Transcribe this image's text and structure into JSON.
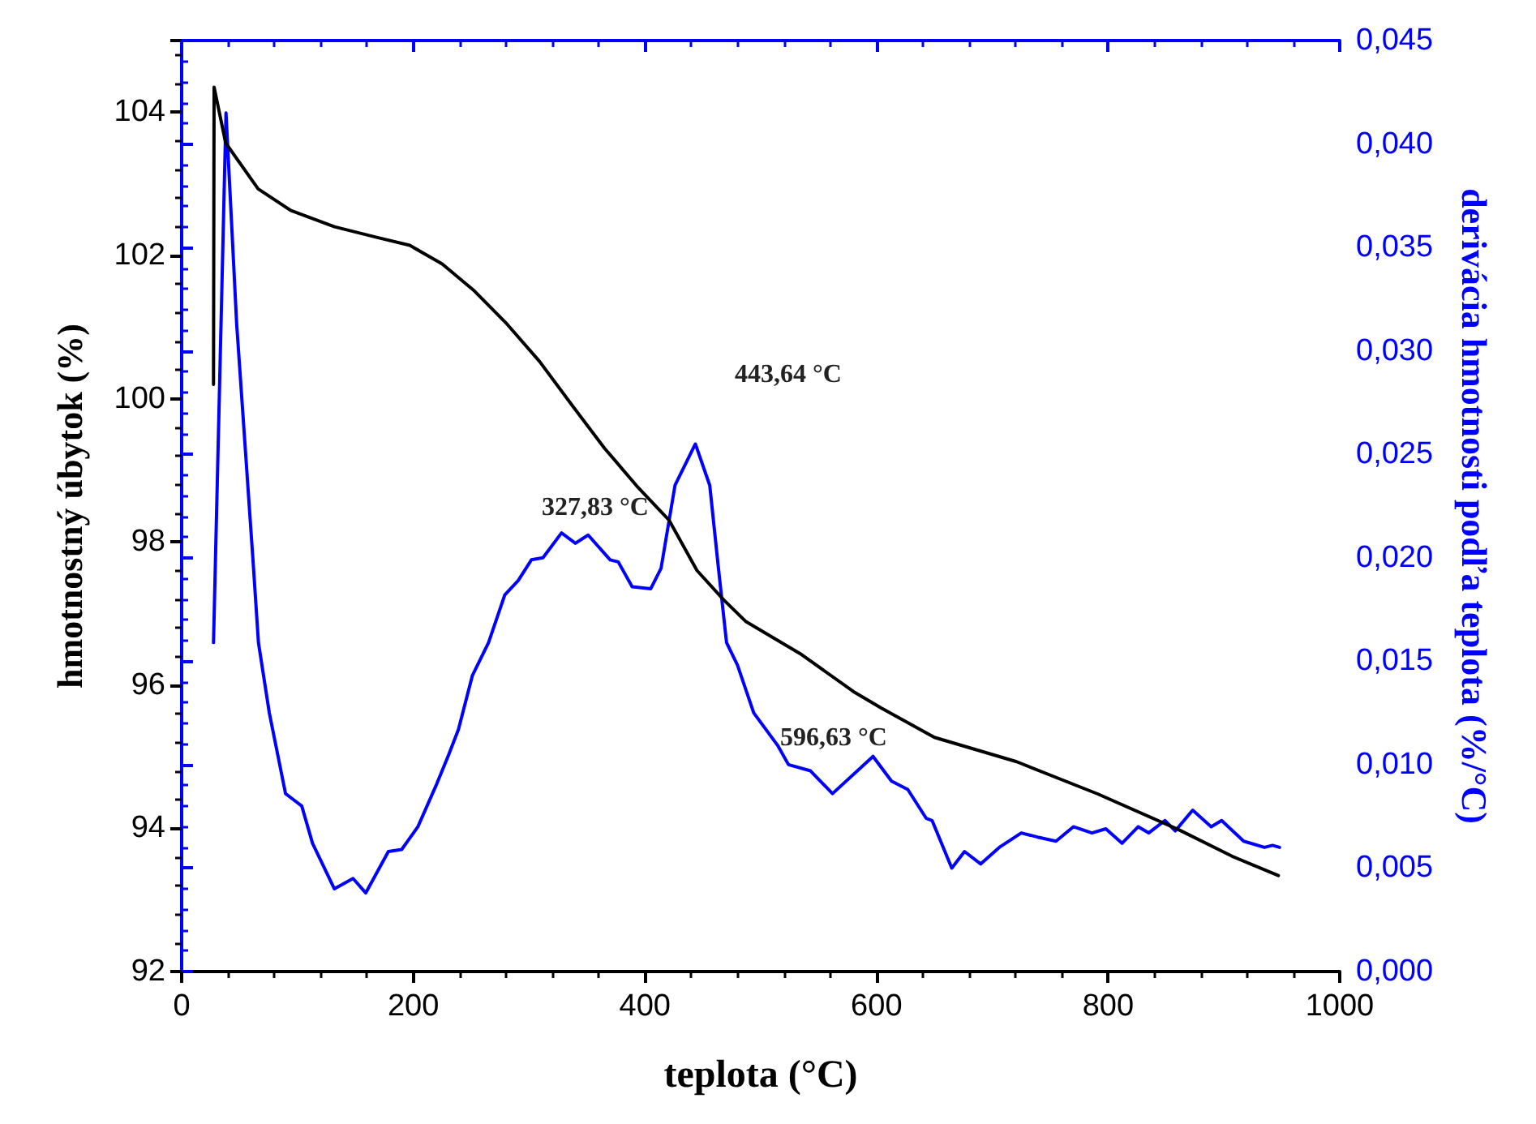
{
  "chart_data": {
    "type": "line",
    "xlabel": "teplota (°C)",
    "ylabel": "hmotnostný úbytok (%)",
    "y2label": "derivácia hmotnosti podľa teplota (%/°C)",
    "xlim": [
      0,
      1000
    ],
    "xticks": [
      0,
      200,
      400,
      600,
      800,
      1000
    ],
    "ylim": [
      92,
      105
    ],
    "yticks": [
      92,
      94,
      96,
      98,
      100,
      102,
      104
    ],
    "y2lim": [
      0,
      0.045
    ],
    "y2ticks": [
      {
        "value": 0,
        "label": "0,000"
      },
      {
        "value": 0.005,
        "label": "0,005"
      },
      {
        "value": 0.01,
        "label": "0,010"
      },
      {
        "value": 0.015,
        "label": "0,015"
      },
      {
        "value": 0.02,
        "label": "0,020"
      },
      {
        "value": 0.025,
        "label": "0,025"
      },
      {
        "value": 0.03,
        "label": "0,030"
      },
      {
        "value": 0.035,
        "label": "0,035"
      },
      {
        "value": 0.04,
        "label": "0,040"
      },
      {
        "value": 0.045,
        "label": "0,045"
      }
    ],
    "marker": "none",
    "grid": false,
    "series": [
      {
        "color": "#000000",
        "x": [
          27.5,
          28,
          38,
          66,
          94,
          132,
          169,
          197,
          225,
          253,
          281,
          309,
          337,
          365,
          393,
          421,
          445,
          468,
          487,
          534,
          580,
          604,
          650,
          721,
          791,
          861,
          907,
          947
        ],
        "values": [
          100.2,
          104.35,
          103.57,
          102.93,
          102.63,
          102.4,
          102.25,
          102.14,
          101.88,
          101.5,
          101.04,
          100.52,
          99.91,
          99.31,
          98.78,
          98.3,
          97.6,
          97.19,
          96.89,
          96.44,
          95.91,
          95.68,
          95.27,
          94.93,
          94.48,
          93.98,
          93.61,
          93.34
        ]
      },
      {
        "color": "#0000ff",
        "axis": "y2",
        "x": [
          27.5,
          38.3,
          47.5,
          61.7,
          66.3,
          75.7,
          89.7,
          96.7,
          103.7,
          113,
          131.8,
          148,
          159,
          178.5,
          190,
          204,
          220.5,
          230,
          239,
          251,
          265,
          279,
          290.6,
          302,
          312,
          328,
          340,
          351,
          370,
          377,
          389,
          405,
          414,
          426,
          443.6,
          456,
          463.5,
          470.5,
          480,
          494,
          515,
          524,
          543,
          562,
          597,
          613,
          627,
          643,
          648,
          665,
          676,
          690,
          706,
          725,
          739,
          755,
          770,
          786,
          798,
          812,
          826,
          835,
          849,
          858,
          873,
          889,
          898,
          917,
          935,
          942,
          948
        ],
        "values": [
          0.0159,
          0.0415,
          0.0313,
          0.0198,
          0.0159,
          0.0125,
          0.0086,
          0.0083,
          0.008,
          0.0062,
          0.004,
          0.0045,
          0.0038,
          0.0058,
          0.0059,
          0.007,
          0.0091,
          0.0104,
          0.0117,
          0.0143,
          0.0159,
          0.0182,
          0.0189,
          0.0199,
          0.02,
          0.0212,
          0.0207,
          0.0211,
          0.0199,
          0.0198,
          0.0186,
          0.0185,
          0.0195,
          0.0235,
          0.0255,
          0.0235,
          0.0195,
          0.0159,
          0.0148,
          0.0125,
          0.0109,
          0.01,
          0.0097,
          0.0086,
          0.0104,
          0.0092,
          0.0088,
          0.0074,
          0.0073,
          0.005,
          0.0058,
          0.0052,
          0.006,
          0.0067,
          0.0065,
          0.0063,
          0.007,
          0.0067,
          0.0069,
          0.0062,
          0.007,
          0.0067,
          0.0073,
          0.0068,
          0.0078,
          0.007,
          0.0073,
          0.0063,
          0.006,
          0.0061,
          0.006
        ]
      }
    ],
    "annotations": [
      "327,83 °C",
      "443,64 °C",
      "596,63 °C"
    ]
  }
}
